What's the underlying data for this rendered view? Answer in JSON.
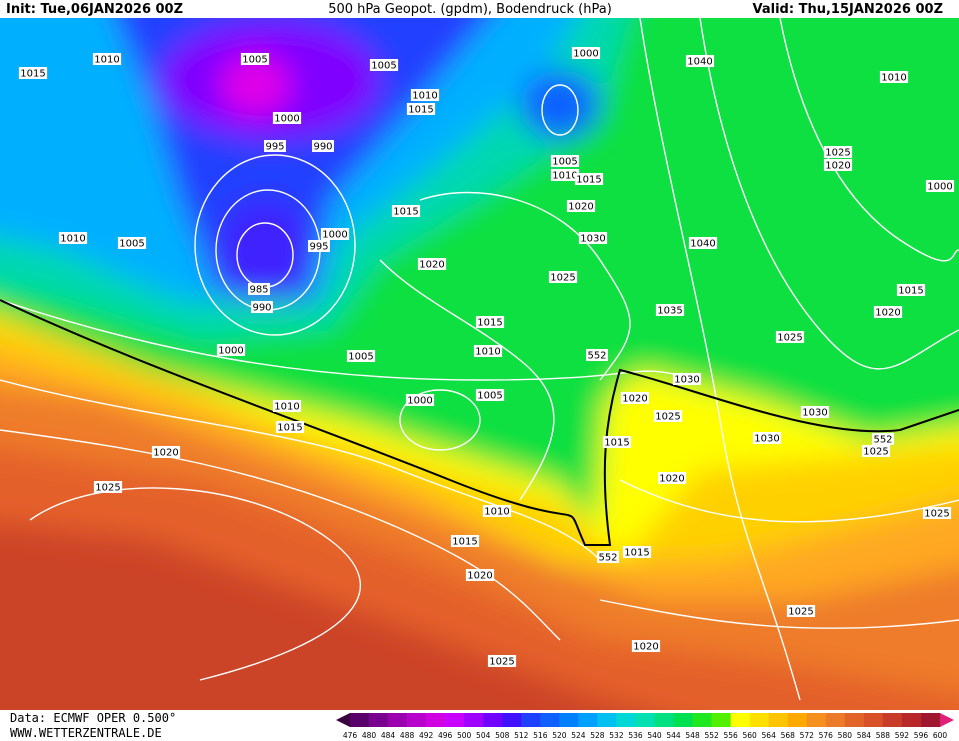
{
  "header": {
    "init": "Init: Tue,06JAN2026 00Z",
    "title": "500 hPa Geopot. (gpdm), Bodendruck (hPa)",
    "valid": "Valid: Thu,15JAN2026 00Z"
  },
  "isobar_labels": [
    "1015",
    "1010",
    "1005",
    "1005",
    "1000",
    "1040",
    "1010",
    "1000",
    "1010",
    "1015",
    "995",
    "990",
    "1005",
    "1010",
    "1015",
    "1025",
    "1020",
    "1000",
    "1015",
    "1020",
    "1000",
    "995",
    "1010",
    "1005",
    "1030",
    "1040",
    "1020",
    "1025",
    "985",
    "990",
    "1015",
    "1020",
    "1035",
    "1015",
    "1025",
    "1000",
    "1005",
    "1010",
    "552",
    "1030",
    "1005",
    "1000",
    "1020",
    "1025",
    "1030",
    "1010",
    "1015",
    "1030",
    "552",
    "1015",
    "1025",
    "1020",
    "1020",
    "1025",
    "1010",
    "1025",
    "1015",
    "552",
    "1015",
    "1020",
    "1025",
    "1020",
    "1025"
  ],
  "colorbar": {
    "levels": [
      476,
      480,
      484,
      488,
      492,
      496,
      500,
      504,
      508,
      512,
      516,
      520,
      524,
      528,
      532,
      536,
      540,
      544,
      548,
      552,
      556,
      560,
      564,
      568,
      572,
      576,
      580,
      584,
      588,
      592,
      596,
      600
    ],
    "colors": [
      "#3a0040",
      "#5a006a",
      "#7a0090",
      "#9a00b0",
      "#b800cc",
      "#d000e0",
      "#c800ff",
      "#a000ff",
      "#7000ff",
      "#4010ff",
      "#2040ff",
      "#1060ff",
      "#0080ff",
      "#00a0ff",
      "#00c0f0",
      "#00d8d8",
      "#00e0b0",
      "#00e080",
      "#00e050",
      "#20e820",
      "#50f000",
      "#ffff00",
      "#ffe000",
      "#ffc400",
      "#ffa800",
      "#f59020",
      "#ec7a28",
      "#e36428",
      "#d85028",
      "#c83c28",
      "#b82828",
      "#a01830",
      "#e0207a"
    ]
  },
  "footer": {
    "source": "Data: ECMWF OPER 0.500°",
    "website": "WWW.WETTERZENTRALE.DE"
  }
}
